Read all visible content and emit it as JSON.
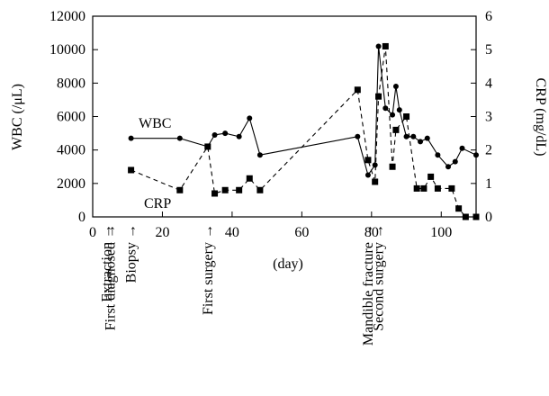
{
  "chart_data": {
    "type": "line",
    "title": "",
    "xlabel": "(day)",
    "ylabel_left": "WBC (/μL)",
    "ylabel_right": "CRP (mg/dL)",
    "xlim": [
      0,
      110
    ],
    "ylim_left": [
      0,
      12000
    ],
    "ylim_right": [
      0,
      6
    ],
    "x_ticks": [
      0,
      20,
      40,
      60,
      80,
      100
    ],
    "y_left_ticks": [
      0,
      2000,
      4000,
      6000,
      8000,
      10000,
      12000
    ],
    "y_right_ticks": [
      0,
      1,
      2,
      3,
      4,
      5,
      6
    ],
    "grid": false,
    "series": [
      {
        "name": "WBC",
        "axis": "left",
        "marker": "circle",
        "line_style": "solid",
        "x": [
          11,
          25,
          33,
          35,
          38,
          42,
          45,
          48,
          76,
          79,
          81,
          82,
          84,
          86,
          87,
          88,
          90,
          92,
          94,
          96,
          99,
          102,
          104,
          106,
          110
        ],
        "y": [
          4700,
          4700,
          4200,
          4900,
          5000,
          4800,
          5900,
          3700,
          4800,
          2500,
          3100,
          10200,
          6500,
          6100,
          7800,
          6400,
          4800,
          4800,
          4500,
          4700,
          3700,
          3000,
          3300,
          4100,
          3700
        ]
      },
      {
        "name": "CRP",
        "axis": "right",
        "marker": "square",
        "line_style": "dashed",
        "x": [
          11,
          25,
          33,
          35,
          38,
          42,
          45,
          48,
          76,
          79,
          81,
          82,
          84,
          86,
          87,
          90,
          93,
          95,
          97,
          99,
          103,
          105,
          107,
          110
        ],
        "y": [
          1.4,
          0.8,
          2.1,
          0.7,
          0.8,
          0.8,
          1.15,
          0.8,
          3.8,
          1.7,
          1.05,
          3.6,
          5.1,
          1.5,
          2.6,
          3.0,
          0.85,
          0.85,
          1.2,
          0.85,
          0.85,
          0.25,
          0.0,
          0.0
        ]
      }
    ],
    "series_labels": [
      "WBC",
      "CRP"
    ],
    "events": [
      {
        "label": "Extraction",
        "x": 4
      },
      {
        "label": "First diagnosed",
        "x": 5
      },
      {
        "label": "Biopsy",
        "x": 11
      },
      {
        "label": "First surgery",
        "x": 33
      },
      {
        "label": "Mandible fracture",
        "x": 79
      },
      {
        "label": "Second surgery",
        "x": 82
      }
    ],
    "colors": {
      "ink": "#000000"
    }
  }
}
